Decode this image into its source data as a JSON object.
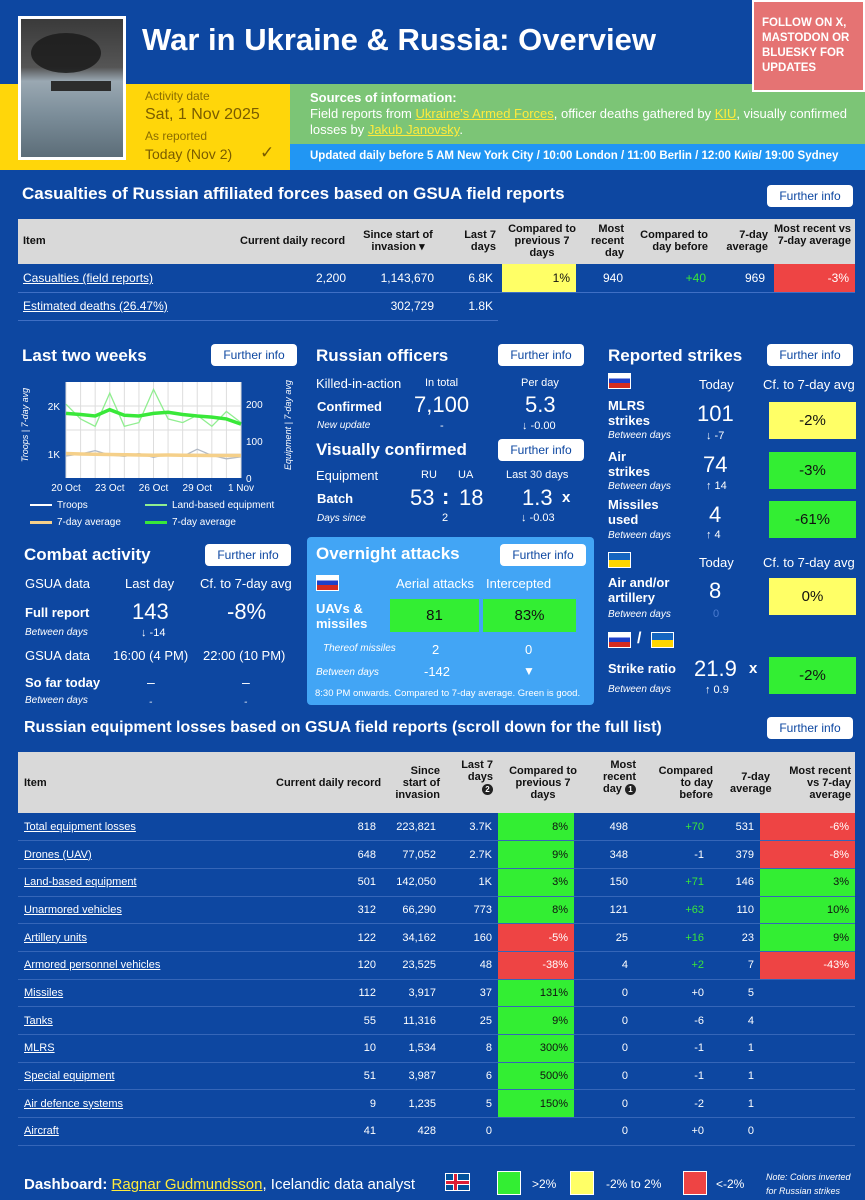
{
  "header": {
    "title": "War in Ukraine & Russia: Overview",
    "follow": "FOLLOW ON X, MASTODON OR BLUESKY FOR UPDATES",
    "activity_label": "Activity date",
    "activity_date": "Sat, 1 Nov 2025",
    "reported_label": "As reported",
    "reported_value": "Today (Nov 2)",
    "check": "✓",
    "sources_title": "Sources of information:",
    "sources_pre": "Field reports from ",
    "sources_link1": "Ukraine's Armed Forces",
    "sources_mid": ", officer deaths gathered by ",
    "sources_link2": "KIU",
    "sources_mid2": ", visually confirmed losses by ",
    "sources_link3": "Jakub Janovsky",
    "sources_end": ".",
    "updated": "Updated daily before 5 AM New York City / 10:00 London / 11:00 Berlin / 12:00 Київ/ 19:00 Sydney"
  },
  "further_info": "Further info",
  "casualties": {
    "title": "Casualties of Russian affiliated forces based on GSUA field reports",
    "columns": [
      "Item",
      "Current daily record",
      "Since start of invasion",
      "Last 7 days",
      "Compared to previous 7 days",
      "Most recent day",
      "Compared to day before",
      "7-day average",
      "Most recent vs 7-day average"
    ],
    "sort_marker": "▾",
    "rows": [
      {
        "item": "Casualties (field reports)",
        "record": "2,200",
        "since": "1,143,670",
        "last7": "6.8K",
        "cmp7": "1%",
        "recent": "940",
        "cmpday": "+40",
        "avg7": "969",
        "vsavg": "-3%"
      },
      {
        "item": "Estimated deaths (26.47%)",
        "record": "",
        "since": "302,729",
        "last7": "1.8K",
        "cmp7": "",
        "recent": "",
        "cmpday": "",
        "avg7": "",
        "vsavg": ""
      }
    ]
  },
  "two_weeks": {
    "title": "Last two weeks",
    "ylabel_left": "Troops | 7-day avg",
    "ylabel_right": "Equipment | 7-day avg",
    "legend": [
      "Troops",
      "Land-based equipment",
      "7-day average",
      "7-day average"
    ]
  },
  "chart_data": {
    "type": "line",
    "x": [
      "20 Oct",
      "21 Oct",
      "22 Oct",
      "23 Oct",
      "24 Oct",
      "25 Oct",
      "26 Oct",
      "27 Oct",
      "28 Oct",
      "29 Oct",
      "30 Oct",
      "31 Oct",
      "1 Nov"
    ],
    "xticks": [
      "20 Oct",
      "23 Oct",
      "26 Oct",
      "29 Oct",
      "1 Nov"
    ],
    "yticks_left": [
      "2K",
      "1K"
    ],
    "yticks_right": [
      "200",
      "100",
      "0"
    ],
    "ylim_left": [
      500,
      2500
    ],
    "ylim_right": [
      0,
      260
    ],
    "series": [
      {
        "name": "Troops",
        "axis": "left",
        "color": "#ffffff",
        "values": [
          960,
          1000,
          1070,
          980,
          950,
          1010,
          930,
          1000,
          950,
          1100,
          970,
          900,
          940
        ]
      },
      {
        "name": "Land-based equipment",
        "axis": "right",
        "color": "#90ee90",
        "values": [
          200,
          160,
          140,
          230,
          140,
          150,
          240,
          160,
          150,
          170,
          140,
          180,
          150
        ]
      },
      {
        "name": "7-day average",
        "axis": "left",
        "color": "#f5d08a",
        "values": [
          1010,
          1000,
          995,
          990,
          985,
          980,
          975,
          978,
          975,
          972,
          970,
          968,
          969
        ]
      },
      {
        "name": "7-day average",
        "axis": "right",
        "color": "#39e839",
        "values": [
          175,
          172,
          168,
          185,
          170,
          168,
          175,
          178,
          172,
          168,
          165,
          160,
          146
        ]
      }
    ]
  },
  "combat": {
    "title": "Combat activity",
    "h1": "GSUA data",
    "h2": "Last day",
    "h3": "Cf. to 7-day avg",
    "full_label": "Full report",
    "full_value": "143",
    "full_cf": "-8%",
    "between_label": "Between days",
    "between_value": "↓ -14",
    "gsua2": "GSUA data",
    "t1": "16:00 (4 PM)",
    "t2": "22:00 (10 PM)",
    "sofar_label": "So far today",
    "sofar_v1": "–",
    "sofar_v2": "–",
    "between2_label": "Between days",
    "between2_v1": "-",
    "between2_v2": "-"
  },
  "officers": {
    "title": "Russian officers",
    "kia": "Killed-in-action",
    "total_label": "In total",
    "perday_label": "Per day",
    "confirmed_label": "Confirmed",
    "confirmed_value": "7,100",
    "perday_value": "5.3",
    "newupd_label": "New update",
    "newupd_value": "-",
    "perday_delta": "↓ -0.00"
  },
  "visual": {
    "title": "Visually confirmed",
    "equip_label": "Equipment",
    "ru": "RU",
    "ua": "UA",
    "last30": "Last 30 days",
    "batch_label": "Batch",
    "ru_value": "53",
    "sep": ":",
    "ua_value": "18",
    "ratio": "1.3",
    "x": "x",
    "since_label": "Days since",
    "since_value": "2",
    "ratio_delta": "↓ -0.03"
  },
  "overnight": {
    "title": "Overnight attacks",
    "col1": "Aerial attacks",
    "col2": "Intercepted",
    "row_label": "UAVs & missiles",
    "attacks": "81",
    "intercepted": "83%",
    "thereof_label": "Thereof missiles",
    "thereof_v1": "2",
    "thereof_v2": "0",
    "between_label": "Between days",
    "between_v1": "-142",
    "between_v2": "▼",
    "note": "8:30 PM onwards. Compared to 7-day average. Green is good."
  },
  "strikes": {
    "title": "Reported strikes",
    "today": "Today",
    "cf": "Cf. to 7-day avg",
    "mlrs_label": "MLRS strikes",
    "mlrs_value": "101",
    "mlrs_delta": "↓ -7",
    "mlrs_cf": "-2%",
    "air_label": "Air strikes",
    "air_value": "74",
    "air_delta": "↑ 14",
    "air_cf": "-3%",
    "missiles_label": "Missiles used",
    "missiles_value": "4",
    "missiles_delta": "↑ 4",
    "missiles_cf": "-61%",
    "between": "Between days",
    "today2": "Today",
    "cf2": "Cf. to 7-day avg",
    "art_label": "Air and/or artillery",
    "art_value": "8",
    "art_delta": "0",
    "art_cf": "0%",
    "slash": "/",
    "ratio_label": "Strike ratio",
    "ratio_value": "21.9",
    "ratio_x": "x",
    "ratio_delta": "↑ 0.9",
    "ratio_cf": "-2%"
  },
  "equipment": {
    "title": "Russian equipment losses based on GSUA field reports (scroll down for the full list)",
    "columns": [
      "Item",
      "Current daily record",
      "Since start of invasion",
      "Last 7 days",
      "Compared to previous 7 days",
      "Most recent day",
      "Compared to day before",
      "7-day average",
      "Most recent vs 7-day average"
    ],
    "badge2": "2",
    "badge1": "1",
    "rows": [
      {
        "item": "Total equipment losses",
        "record": "818",
        "since": "223,821",
        "last7": "3.7K",
        "cmp7": "8%",
        "cmp7c": "grn",
        "recent": "498",
        "cmpday": "+70",
        "cdc": "g",
        "avg7": "531",
        "vsavg": "-6%",
        "vsc": "red"
      },
      {
        "item": "Drones (UAV)",
        "record": "648",
        "since": "77,052",
        "last7": "2.7K",
        "cmp7": "9%",
        "cmp7c": "grn",
        "recent": "348",
        "cmpday": "-1",
        "cdc": "w",
        "avg7": "379",
        "vsavg": "-8%",
        "vsc": "red"
      },
      {
        "item": "Land-based equipment",
        "record": "501",
        "since": "142,050",
        "last7": "1K",
        "cmp7": "3%",
        "cmp7c": "grn",
        "recent": "150",
        "cmpday": "+71",
        "cdc": "g",
        "avg7": "146",
        "vsavg": "3%",
        "vsc": "grn"
      },
      {
        "item": "Unarmored vehicles",
        "record": "312",
        "since": "66,290",
        "last7": "773",
        "cmp7": "8%",
        "cmp7c": "grn",
        "recent": "121",
        "cmpday": "+63",
        "cdc": "g",
        "avg7": "110",
        "vsavg": "10%",
        "vsc": "grn"
      },
      {
        "item": "Artillery units",
        "record": "122",
        "since": "34,162",
        "last7": "160",
        "cmp7": "-5%",
        "cmp7c": "red",
        "recent": "25",
        "cmpday": "+16",
        "cdc": "g",
        "avg7": "23",
        "vsavg": "9%",
        "vsc": "grn"
      },
      {
        "item": "Armored personnel vehicles",
        "record": "120",
        "since": "23,525",
        "last7": "48",
        "cmp7": "-38%",
        "cmp7c": "red",
        "recent": "4",
        "cmpday": "+2",
        "cdc": "g",
        "avg7": "7",
        "vsavg": "-43%",
        "vsc": "red"
      },
      {
        "item": "Missiles",
        "record": "112",
        "since": "3,917",
        "last7": "37",
        "cmp7": "131%",
        "cmp7c": "grn",
        "recent": "0",
        "cmpday": "+0",
        "cdc": "w",
        "avg7": "5",
        "vsavg": "",
        "vsc": ""
      },
      {
        "item": "Tanks",
        "record": "55",
        "since": "11,316",
        "last7": "25",
        "cmp7": "9%",
        "cmp7c": "grn",
        "recent": "0",
        "cmpday": "-6",
        "cdc": "w",
        "avg7": "4",
        "vsavg": "",
        "vsc": ""
      },
      {
        "item": "MLRS",
        "record": "10",
        "since": "1,534",
        "last7": "8",
        "cmp7": "300%",
        "cmp7c": "grn",
        "recent": "0",
        "cmpday": "-1",
        "cdc": "w",
        "avg7": "1",
        "vsavg": "",
        "vsc": ""
      },
      {
        "item": "Special equipment",
        "record": "51",
        "since": "3,987",
        "last7": "6",
        "cmp7": "500%",
        "cmp7c": "grn",
        "recent": "0",
        "cmpday": "-1",
        "cdc": "w",
        "avg7": "1",
        "vsavg": "",
        "vsc": ""
      },
      {
        "item": "Air defence systems",
        "record": "9",
        "since": "1,235",
        "last7": "5",
        "cmp7": "150%",
        "cmp7c": "grn",
        "recent": "0",
        "cmpday": "-2",
        "cdc": "w",
        "avg7": "1",
        "vsavg": "",
        "vsc": ""
      },
      {
        "item": "Aircraft",
        "record": "41",
        "since": "428",
        "last7": "0",
        "cmp7": "",
        "cmp7c": "",
        "recent": "0",
        "cmpday": "+0",
        "cdc": "w",
        "avg7": "0",
        "vsavg": "",
        "vsc": ""
      }
    ]
  },
  "footer": {
    "label": "Dashboard:",
    "author": "Ragnar Gudmundsson",
    "rest": ", Icelandic data analyst",
    "legend": [
      ">2%",
      "-2% to 2%",
      "<-2%"
    ],
    "note": "Note: Colors inverted for Russian strikes"
  }
}
